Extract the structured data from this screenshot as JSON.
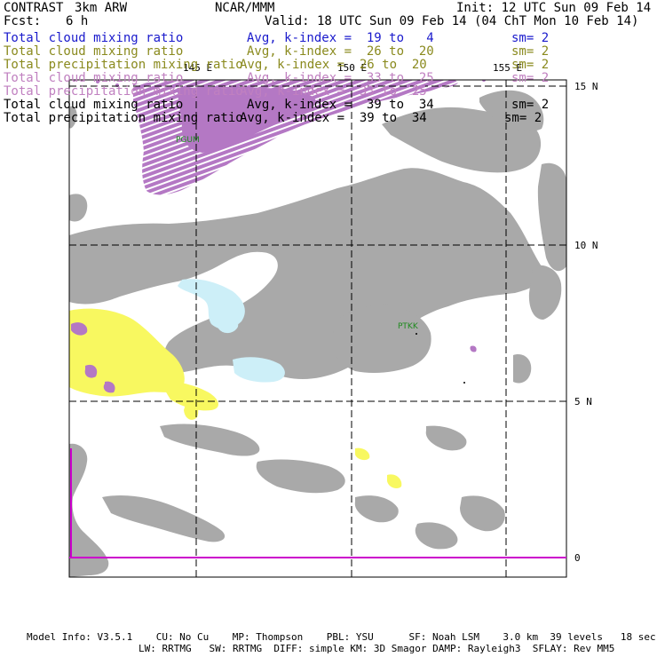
{
  "header": {
    "program": "CONTRAST",
    "model": "3km ARW",
    "org": "NCAR/MMM",
    "init": "Init: 12 UTC Sun 09 Feb 14",
    "fcst_label": "Fcst:",
    "fcst_value": "6 h",
    "valid": "Valid: 18 UTC Sun 09 Feb 14 (04 ChT Mon 10 Feb 14)"
  },
  "legend": [
    {
      "field": "Total cloud mixing ratio",
      "avg": "Avg, k-index =  19 to   4",
      "sm": "sm= 2",
      "color": "#1a1acc"
    },
    {
      "field": "Total cloud mixing ratio",
      "avg": "Avg, k-index =  26 to  20",
      "sm": "sm= 2",
      "color": "#8a8a1e"
    },
    {
      "field": "Total precipitation mixing ratio",
      "avg": "Avg, k-index =  26 to  20",
      "sm": "sm= 2",
      "color": "#8a8a1e"
    },
    {
      "field": "Total cloud mixing ratio",
      "avg": "Avg, k-index =  33 to  25",
      "sm": "sm= 2",
      "color": "#c080c0"
    },
    {
      "field": "Total precipitation mixing ratio",
      "avg": "Avg, k-index =  33 to  25",
      "sm": "",
      "color": "#c080c0"
    },
    {
      "field": "Total cloud mixing ratio",
      "avg": "Avg, k-index =  39 to  34",
      "sm": "sm= 2",
      "color": "#000000"
    },
    {
      "field": "Total precipitation mixing ratio",
      "avg": "Avg, k-index =  39 to  34",
      "sm": "sm= 2",
      "color": "#000000"
    }
  ],
  "map": {
    "lon_labels": [
      "145 E",
      "150 E",
      "155 E"
    ],
    "lat_labels": [
      "15 N",
      "10 N",
      "5 N",
      "0"
    ],
    "stations": [
      "PGUM",
      "PTKK"
    ],
    "colors": {
      "gray_cloud": "#a9a9a9",
      "purple_cloud": "#b478c4",
      "yellow_precip": "#f8f860",
      "lightblue_cloud": "#cdeff8",
      "equator": "#cc00cc",
      "grid": "#000000",
      "station_label": "#1e8a1e"
    }
  },
  "footer": {
    "line1": "Model Info: V3.5.1    CU: No Cu    MP: Thompson    PBL: YSU      SF: Noah LSM    3.0 km  39 levels   18 sec",
    "line2": "LW: RRTMG   SW: RRTMG  DIFF: simple KM: 3D Smagor DAMP: Rayleigh3  SFLAY: Rev MM5"
  }
}
